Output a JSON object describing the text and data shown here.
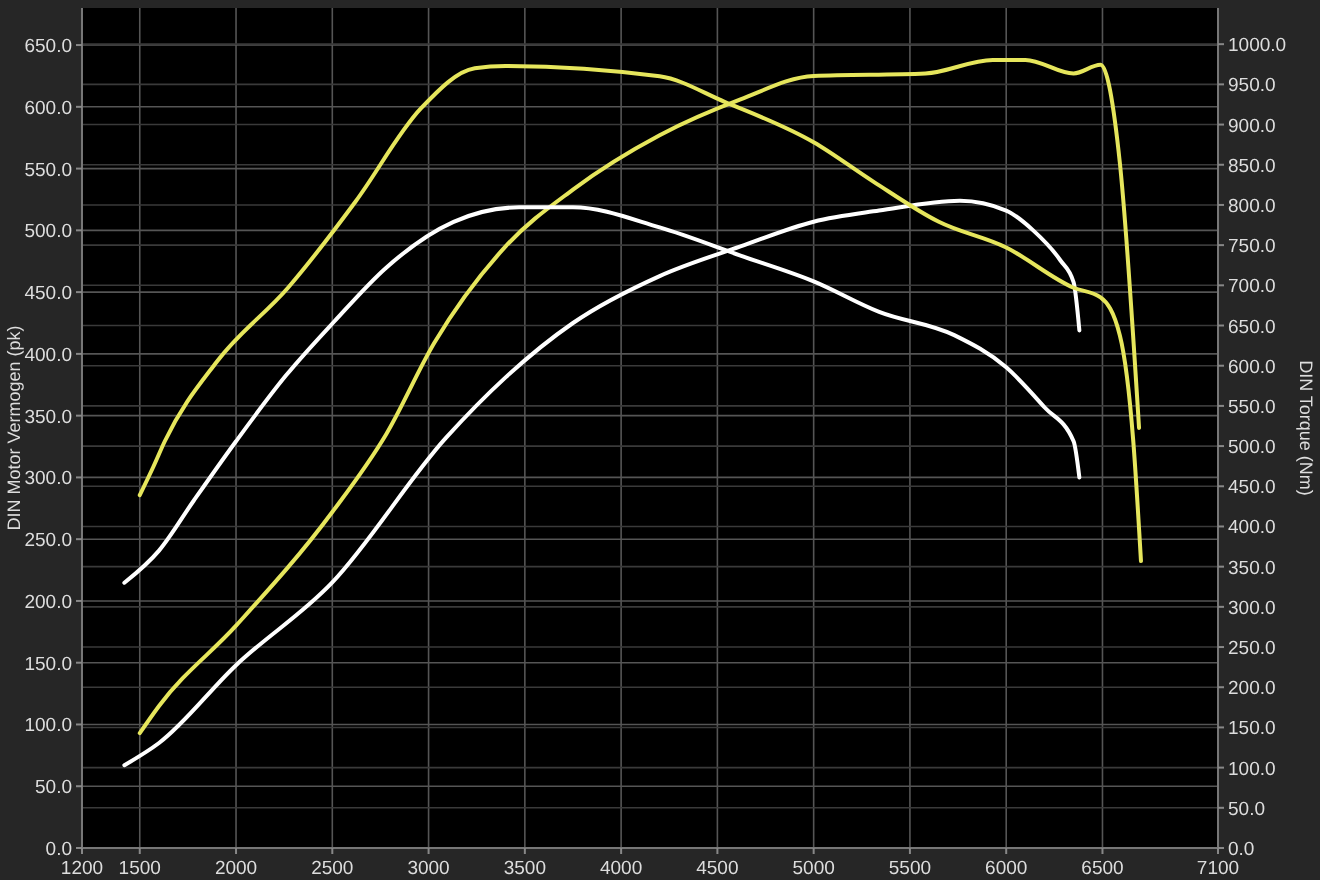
{
  "chart_data": {
    "type": "line",
    "ylabel": "DIN Motor Vermogen (pk)",
    "y2label": "DIN Torque (Nm)",
    "xlim": [
      1200,
      7100
    ],
    "xticks": [
      1200,
      1500,
      2000,
      2500,
      3000,
      3500,
      4000,
      4500,
      5000,
      5500,
      6000,
      6500,
      7100
    ],
    "ylim": [
      0,
      680
    ],
    "yticks": [
      {
        "value": 0,
        "label": "0.0"
      },
      {
        "value": 50,
        "label": "50.0"
      },
      {
        "value": 100,
        "label": "100.0"
      },
      {
        "value": 150,
        "label": "150.0"
      },
      {
        "value": 200,
        "label": "200.0"
      },
      {
        "value": 250,
        "label": "250.0"
      },
      {
        "value": 300,
        "label": "300.0"
      },
      {
        "value": 350,
        "label": "350.0"
      },
      {
        "value": 400,
        "label": "400.0"
      },
      {
        "value": 450,
        "label": "450.0"
      },
      {
        "value": 500,
        "label": "500.0"
      },
      {
        "value": 550,
        "label": "550.0"
      },
      {
        "value": 600,
        "label": "600.0"
      },
      {
        "value": 650,
        "label": "650.0"
      }
    ],
    "y2lim": [
      0,
      1045
    ],
    "y2ticks": [
      {
        "value": 0,
        "label": "0.0"
      },
      {
        "value": 50,
        "label": "50.0"
      },
      {
        "value": 100,
        "label": "100.0"
      },
      {
        "value": 150,
        "label": "150.0"
      },
      {
        "value": 200,
        "label": "200.0"
      },
      {
        "value": 250,
        "label": "250.0"
      },
      {
        "value": 300,
        "label": "300.0"
      },
      {
        "value": 350,
        "label": "350.0"
      },
      {
        "value": 400,
        "label": "400.0"
      },
      {
        "value": 450,
        "label": "450.0"
      },
      {
        "value": 500,
        "label": "500.0"
      },
      {
        "value": 550,
        "label": "550.0"
      },
      {
        "value": 600,
        "label": "600.0"
      },
      {
        "value": 650,
        "label": "650.0"
      },
      {
        "value": 700,
        "label": "700.0"
      },
      {
        "value": 750,
        "label": "750.0"
      },
      {
        "value": 800,
        "label": "800.0"
      },
      {
        "value": 850,
        "label": "850.0"
      },
      {
        "value": 900,
        "label": "900.0"
      },
      {
        "value": 950,
        "label": "950.0"
      },
      {
        "value": 1000,
        "label": "1000.0"
      }
    ],
    "grid": true,
    "marker": "none",
    "line_style": "solid",
    "series": [
      {
        "color": "#e6e65c",
        "x": [
          1500,
          1600,
          2000,
          2500,
          2780,
          3030,
          3400,
          3750,
          4200,
          4620,
          5000,
          5580,
          5930,
          6100,
          6350,
          6490,
          6590,
          6690
        ],
        "values": [
          93,
          115,
          180,
          272,
          335,
          409,
          487,
          533,
          577,
          606,
          625,
          627,
          638,
          638,
          627,
          634,
          555,
          340
        ]
      },
      {
        "color": "#ffffff",
        "x": [
          1420,
          1600,
          2000,
          2500,
          3090,
          3400,
          3750,
          4200,
          4620,
          5000,
          5340,
          5760,
          6000,
          6140,
          6280,
          6350,
          6380
        ],
        "values": [
          67,
          85,
          148,
          215,
          332,
          381,
          425,
          463,
          487,
          507,
          516,
          524,
          516,
          500,
          476,
          458,
          419
        ]
      },
      {
        "color": "#e6e65c",
        "axis": "y2",
        "x": [
          1500,
          1570,
          1630,
          1900,
          2270,
          2620,
          2960,
          3240,
          3400,
          4200,
          4540,
          5000,
          5310,
          5650,
          6000,
          6350,
          6490,
          6590,
          6660,
          6700
        ],
        "values": [
          439,
          474,
          506,
          605,
          697,
          804,
          920,
          970,
          973,
          960,
          928,
          878,
          829,
          779,
          747,
          697,
          685,
          638,
          506,
          357
        ]
      },
      {
        "color": "#ffffff",
        "axis": "y2",
        "x": [
          1420,
          1600,
          1780,
          2000,
          2260,
          2510,
          2780,
          3130,
          3470,
          3750,
          4200,
          4620,
          5000,
          5340,
          5730,
          6000,
          6200,
          6350,
          6380
        ],
        "values": [
          330,
          370,
          432,
          506,
          588,
          655,
          722,
          779,
          797,
          797,
          772,
          737,
          705,
          667,
          638,
          598,
          548,
          506,
          461
        ]
      }
    ]
  }
}
